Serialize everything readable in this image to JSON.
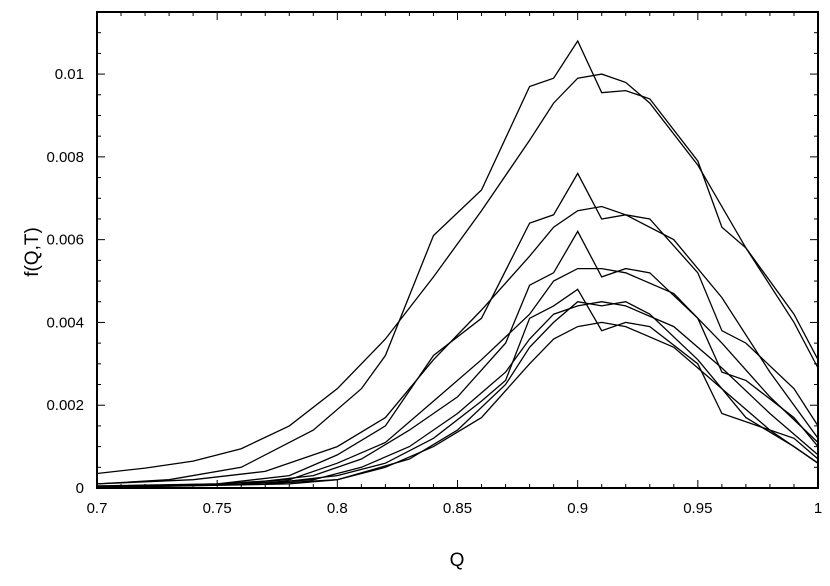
{
  "chart_data": {
    "type": "line",
    "xlabel": "Q",
    "ylabel": "f(Q,T)",
    "xlim": [
      0.7,
      1.0
    ],
    "ylim": [
      0,
      0.0115
    ],
    "xticks": [
      0.7,
      0.75,
      0.8,
      0.85,
      0.9,
      0.95,
      1.0
    ],
    "xtick_labels": [
      "0.7",
      "0.75",
      "0.8",
      "0.85",
      "0.9",
      "0.95",
      "1"
    ],
    "yticks": [
      0,
      0.002,
      0.004,
      0.006,
      0.008,
      0.01
    ],
    "ytick_labels": [
      "0",
      "0.002",
      "0.004",
      "0.006",
      "0.008",
      "0.01"
    ],
    "x_minor_step": 0.01,
    "y_minor_step": 0.0005,
    "grid": false,
    "legend": "none",
    "series": [
      {
        "values": [
          [
            0.7,
            0.00035
          ],
          [
            0.72,
            0.00048
          ],
          [
            0.74,
            0.00065
          ],
          [
            0.76,
            0.00095
          ],
          [
            0.78,
            0.0015
          ],
          [
            0.8,
            0.0024
          ],
          [
            0.82,
            0.0036
          ],
          [
            0.84,
            0.0051
          ],
          [
            0.86,
            0.0067
          ],
          [
            0.88,
            0.0084
          ],
          [
            0.89,
            0.0093
          ],
          [
            0.9,
            0.0099
          ],
          [
            0.91,
            0.01
          ],
          [
            0.92,
            0.0098
          ],
          [
            0.93,
            0.0093
          ],
          [
            0.95,
            0.0078
          ],
          [
            0.97,
            0.0058
          ],
          [
            0.99,
            0.004
          ],
          [
            1.0,
            0.0029
          ]
        ]
      },
      {
        "values": [
          [
            0.7,
            0.0001
          ],
          [
            0.73,
            0.0002
          ],
          [
            0.76,
            0.0005
          ],
          [
            0.79,
            0.0014
          ],
          [
            0.81,
            0.0024
          ],
          [
            0.82,
            0.0032
          ],
          [
            0.84,
            0.0061
          ],
          [
            0.86,
            0.0072
          ],
          [
            0.88,
            0.0097
          ],
          [
            0.89,
            0.0099
          ],
          [
            0.9,
            0.0108
          ],
          [
            0.91,
            0.00955
          ],
          [
            0.92,
            0.0096
          ],
          [
            0.93,
            0.0094
          ],
          [
            0.95,
            0.0079
          ],
          [
            0.96,
            0.0063
          ],
          [
            0.97,
            0.0058
          ],
          [
            0.99,
            0.0042
          ],
          [
            1.0,
            0.0031
          ]
        ]
      },
      {
        "values": [
          [
            0.7,
            0.0001
          ],
          [
            0.74,
            0.0002
          ],
          [
            0.77,
            0.0004
          ],
          [
            0.8,
            0.001
          ],
          [
            0.82,
            0.0017
          ],
          [
            0.84,
            0.0031
          ],
          [
            0.86,
            0.0043
          ],
          [
            0.88,
            0.0056
          ],
          [
            0.89,
            0.0063
          ],
          [
            0.9,
            0.0067
          ],
          [
            0.91,
            0.0068
          ],
          [
            0.92,
            0.0066
          ],
          [
            0.94,
            0.006
          ],
          [
            0.96,
            0.0046
          ],
          [
            0.98,
            0.0028
          ],
          [
            1.0,
            0.0012
          ]
        ]
      },
      {
        "values": [
          [
            0.7,
            5e-05
          ],
          [
            0.75,
            0.0001
          ],
          [
            0.78,
            0.0003
          ],
          [
            0.8,
            0.0008
          ],
          [
            0.82,
            0.0015
          ],
          [
            0.84,
            0.0032
          ],
          [
            0.86,
            0.0041
          ],
          [
            0.88,
            0.0064
          ],
          [
            0.89,
            0.0066
          ],
          [
            0.9,
            0.0076
          ],
          [
            0.91,
            0.0065
          ],
          [
            0.92,
            0.0066
          ],
          [
            0.93,
            0.0065
          ],
          [
            0.95,
            0.0052
          ],
          [
            0.96,
            0.0038
          ],
          [
            0.97,
            0.0035
          ],
          [
            0.99,
            0.0024
          ],
          [
            1.0,
            0.0015
          ]
        ]
      },
      {
        "values": [
          [
            0.7,
            3e-05
          ],
          [
            0.75,
            0.0001
          ],
          [
            0.78,
            0.0002
          ],
          [
            0.8,
            0.0006
          ],
          [
            0.82,
            0.0011
          ],
          [
            0.84,
            0.0021
          ],
          [
            0.86,
            0.0031
          ],
          [
            0.88,
            0.0042
          ],
          [
            0.89,
            0.005
          ],
          [
            0.9,
            0.0053
          ],
          [
            0.91,
            0.0053
          ],
          [
            0.92,
            0.0052
          ],
          [
            0.94,
            0.0047
          ],
          [
            0.96,
            0.0035
          ],
          [
            0.98,
            0.0022
          ],
          [
            1.0,
            0.0011
          ]
        ]
      },
      {
        "values": [
          [
            0.7,
            3e-05
          ],
          [
            0.76,
            0.0001
          ],
          [
            0.79,
            0.0003
          ],
          [
            0.81,
            0.0007
          ],
          [
            0.83,
            0.0014
          ],
          [
            0.85,
            0.0022
          ],
          [
            0.87,
            0.0035
          ],
          [
            0.88,
            0.0049
          ],
          [
            0.89,
            0.0052
          ],
          [
            0.9,
            0.0062
          ],
          [
            0.91,
            0.0051
          ],
          [
            0.92,
            0.0053
          ],
          [
            0.93,
            0.0052
          ],
          [
            0.95,
            0.0041
          ],
          [
            0.96,
            0.0028
          ],
          [
            0.97,
            0.0026
          ],
          [
            0.99,
            0.0017
          ],
          [
            1.0,
            0.001
          ]
        ]
      },
      {
        "values": [
          [
            0.7,
            2e-05
          ],
          [
            0.76,
            0.0001
          ],
          [
            0.79,
            0.0002
          ],
          [
            0.81,
            0.0005
          ],
          [
            0.83,
            0.001
          ],
          [
            0.85,
            0.0018
          ],
          [
            0.87,
            0.0028
          ],
          [
            0.88,
            0.0036
          ],
          [
            0.89,
            0.0042
          ],
          [
            0.9,
            0.0044
          ],
          [
            0.91,
            0.0045
          ],
          [
            0.92,
            0.0044
          ],
          [
            0.94,
            0.0039
          ],
          [
            0.96,
            0.0029
          ],
          [
            0.98,
            0.0018
          ],
          [
            1.0,
            0.0008
          ]
        ]
      },
      {
        "values": [
          [
            0.7,
            2e-05
          ],
          [
            0.77,
            0.0001
          ],
          [
            0.8,
            0.0003
          ],
          [
            0.82,
            0.0006
          ],
          [
            0.84,
            0.0012
          ],
          [
            0.86,
            0.0021
          ],
          [
            0.87,
            0.0026
          ],
          [
            0.88,
            0.0041
          ],
          [
            0.89,
            0.0044
          ],
          [
            0.9,
            0.0048
          ],
          [
            0.91,
            0.0038
          ],
          [
            0.92,
            0.004
          ],
          [
            0.93,
            0.0039
          ],
          [
            0.95,
            0.003
          ],
          [
            0.96,
            0.0018
          ],
          [
            0.97,
            0.0016
          ],
          [
            0.99,
            0.0012
          ],
          [
            1.0,
            0.0007
          ]
        ]
      },
      {
        "values": [
          [
            0.7,
            2e-05
          ],
          [
            0.77,
            0.0001
          ],
          [
            0.8,
            0.0002
          ],
          [
            0.82,
            0.0005
          ],
          [
            0.84,
            0.001
          ],
          [
            0.86,
            0.0017
          ],
          [
            0.88,
            0.003
          ],
          [
            0.89,
            0.0036
          ],
          [
            0.9,
            0.0039
          ],
          [
            0.91,
            0.004
          ],
          [
            0.92,
            0.0039
          ],
          [
            0.94,
            0.0034
          ],
          [
            0.96,
            0.0024
          ],
          [
            0.98,
            0.0014
          ],
          [
            1.0,
            0.0006
          ]
        ]
      },
      {
        "values": [
          [
            0.7,
            1e-05
          ],
          [
            0.78,
            0.0001
          ],
          [
            0.8,
            0.0002
          ],
          [
            0.83,
            0.0007
          ],
          [
            0.85,
            0.0014
          ],
          [
            0.87,
            0.0025
          ],
          [
            0.88,
            0.0034
          ],
          [
            0.89,
            0.004
          ],
          [
            0.9,
            0.0045
          ],
          [
            0.91,
            0.0044
          ],
          [
            0.92,
            0.0045
          ],
          [
            0.93,
            0.0042
          ],
          [
            0.95,
            0.0031
          ],
          [
            0.97,
            0.0017
          ],
          [
            0.99,
            0.001
          ],
          [
            1.0,
            0.0006
          ]
        ]
      }
    ]
  }
}
